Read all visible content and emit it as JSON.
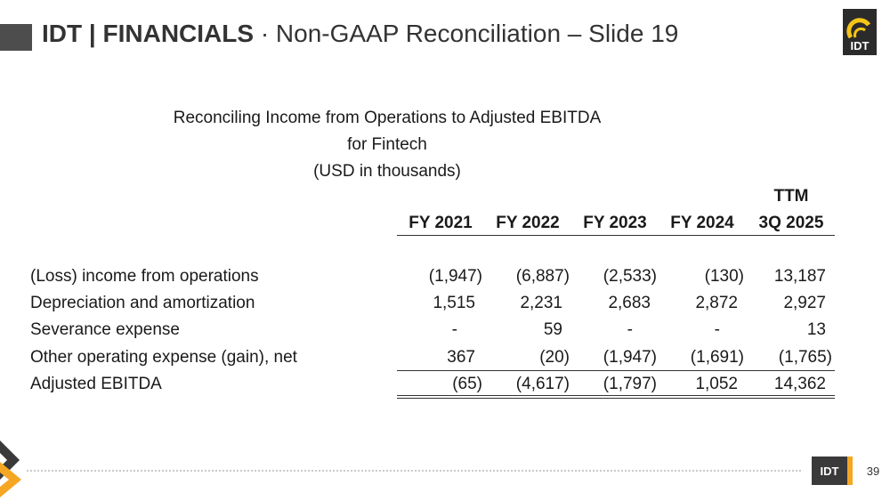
{
  "header": {
    "brand": "IDT | FINANCIALS",
    "subtitle": "· Non-GAAP Reconciliation – Slide 19",
    "logo_text": "IDT"
  },
  "table": {
    "title_lines": [
      "Reconciling Income from Operations to Adjusted EBITDA",
      "for Fintech",
      "(USD in thousands)"
    ],
    "columns": [
      {
        "top": "",
        "bottom": "FY 2021"
      },
      {
        "top": "",
        "bottom": "FY 2022"
      },
      {
        "top": "",
        "bottom": "FY 2023"
      },
      {
        "top": "",
        "bottom": "FY 2024"
      },
      {
        "top": "TTM",
        "bottom": "3Q 2025"
      }
    ],
    "rows": [
      {
        "label": "(Loss) income from operations",
        "values": [
          "(1,947)",
          "(6,887)",
          "(2,533)",
          "(130)",
          "13,187"
        ]
      },
      {
        "label": "Depreciation and amortization",
        "values": [
          "1,515",
          "2,231",
          "2,683",
          "2,872",
          "2,927"
        ]
      },
      {
        "label": "Severance expense",
        "values": [
          "-",
          "59",
          "-",
          "-",
          "13"
        ]
      },
      {
        "label": "Other operating expense (gain), net",
        "values": [
          "367",
          "(20)",
          "(1,947)",
          "(1,691)",
          "(1,765)"
        ]
      },
      {
        "label": "Adjusted EBITDA",
        "values": [
          "(65)",
          "(4,617)",
          "(1,797)",
          "1,052",
          "14,362"
        ]
      }
    ]
  },
  "footer": {
    "brand": "IDT",
    "page_number": "39",
    "accent_color": "#f5a623"
  }
}
